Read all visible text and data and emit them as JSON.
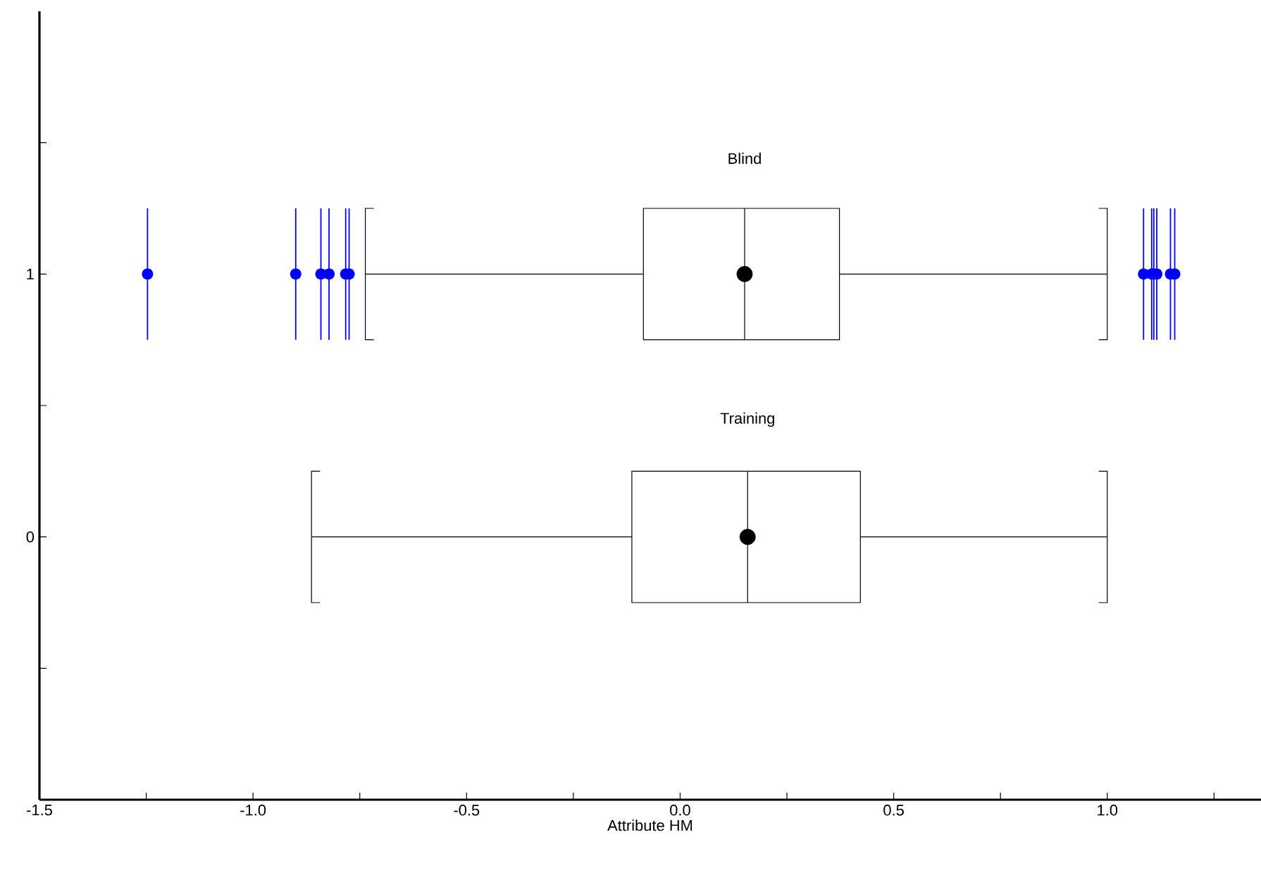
{
  "chart_data": {
    "type": "box",
    "orientation": "horizontal",
    "xlabel": "Attribute HM",
    "categories": [
      "1",
      "0"
    ],
    "annotations": [
      "Blind",
      "Training"
    ],
    "xlim": [
      -1.5,
      1.36
    ],
    "xticks": [
      {
        "value": -1.5,
        "label": "-1.5"
      },
      {
        "value": -1.25,
        "label": null
      },
      {
        "value": -1.0,
        "label": "-1.0"
      },
      {
        "value": -0.75,
        "label": null
      },
      {
        "value": -0.5,
        "label": "-0.5"
      },
      {
        "value": -0.25,
        "label": null
      },
      {
        "value": 0,
        "label": "0.0"
      },
      {
        "value": 0.25,
        "label": null
      },
      {
        "value": 0.5,
        "label": "0.5"
      },
      {
        "value": 0.75,
        "label": null
      },
      {
        "value": 1.0,
        "label": "1.0"
      },
      {
        "value": 1.25,
        "label": null
      }
    ],
    "grid": false,
    "ref_lines": [
      {
        "axis": "x",
        "value": -1.247,
        "color": "#0000ff"
      },
      {
        "axis": "x",
        "value": -0.9,
        "color": "#0000ff"
      },
      {
        "axis": "x",
        "value": -0.841,
        "color": "#0000ff"
      },
      {
        "axis": "x",
        "value": -0.822,
        "color": "#0000ff"
      },
      {
        "axis": "x",
        "value": -0.783,
        "color": "#0000ff"
      },
      {
        "axis": "x",
        "value": -0.775,
        "color": "#0000ff"
      },
      {
        "axis": "x",
        "value": 1.085,
        "color": "#0000ff"
      },
      {
        "axis": "x",
        "value": 1.104,
        "color": "#0000ff"
      },
      {
        "axis": "x",
        "value": 1.109,
        "color": "#0000ff"
      },
      {
        "axis": "x",
        "value": 1.116,
        "color": "#0000ff"
      },
      {
        "axis": "x",
        "value": 1.148,
        "color": "#0000ff"
      },
      {
        "axis": "x",
        "value": 1.158,
        "color": "#0000ff"
      }
    ],
    "series": [
      {
        "type": "box",
        "color": "#000000",
        "boxes": [
          {
            "low": -0.737,
            "q1": -0.086,
            "median": 0.151,
            "q3": 0.373,
            "high": 1.0,
            "mean": 0.151,
            "outliers": [
              -1.247,
              -0.9,
              -0.841,
              -0.822,
              -0.783,
              -0.775,
              1.085,
              1.104,
              1.109,
              1.116,
              1.148,
              1.158
            ]
          },
          {
            "low": -0.863,
            "q1": -0.113,
            "median": 0.158,
            "q3": 0.422,
            "high": 1.0,
            "mean": 0.158
          }
        ]
      }
    ]
  }
}
